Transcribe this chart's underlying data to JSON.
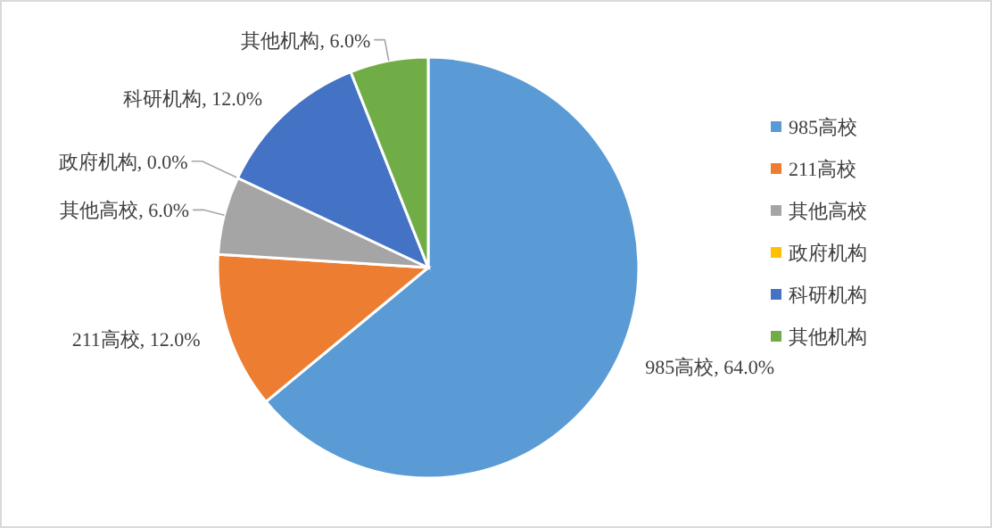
{
  "chart_data": {
    "type": "pie",
    "categories": [
      "985高校",
      "211高校",
      "其他高校",
      "政府机构",
      "科研机构",
      "其他机构"
    ],
    "values": [
      64.0,
      12.0,
      6.0,
      0.0,
      12.0,
      6.0
    ],
    "colors": [
      "#5b9bd5",
      "#ed7d31",
      "#a5a5a5",
      "#ffc000",
      "#4472c4",
      "#70ad47"
    ],
    "value_labels": [
      "985高校, 64.0%",
      "211高校, 12.0%",
      "其他高校, 6.0%",
      "政府机构, 0.0%",
      "科研机构, 12.0%",
      "其他机构, 6.0%"
    ],
    "legend": "right"
  }
}
